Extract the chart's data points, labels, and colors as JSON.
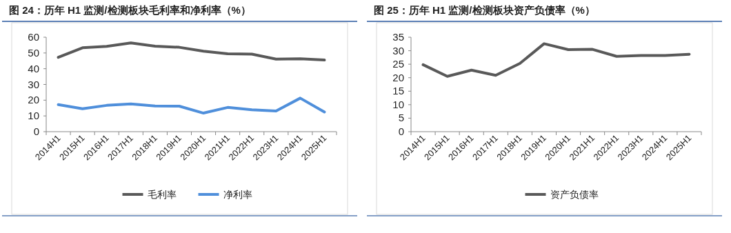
{
  "chart_data": [
    {
      "type": "line",
      "title": "图 24：历年 H1 监测/检测板块毛利率和净利率（%）",
      "categories": [
        "2014H1",
        "2015H1",
        "2016H1",
        "2017H1",
        "2018H1",
        "2019H1",
        "2020H1",
        "2021H1",
        "2022H1",
        "2023H1",
        "2024H1",
        "2025H1"
      ],
      "series": [
        {
          "name": "毛利率",
          "color": "#595959",
          "values": [
            47.2,
            53.3,
            54.2,
            56.4,
            54.3,
            53.6,
            51.1,
            49.5,
            49.3,
            46.1,
            46.3,
            45.5
          ]
        },
        {
          "name": "净利率",
          "color": "#4f8fdb",
          "values": [
            17.2,
            14.6,
            16.7,
            17.6,
            16.3,
            16.2,
            11.8,
            15.4,
            13.9,
            13.1,
            21.3,
            12.5
          ]
        }
      ],
      "ylim": [
        0,
        60
      ],
      "yticks": [
        0,
        10,
        20,
        30,
        40,
        50,
        60
      ],
      "legend": "bottom"
    },
    {
      "type": "line",
      "title": "图 25：历年 H1 监测/检测板块资产负债率（%）",
      "categories": [
        "2014H1",
        "2015H1",
        "2016H1",
        "2017H1",
        "2018H1",
        "2019H1",
        "2020H1",
        "2021H1",
        "2022H1",
        "2023H1",
        "2024H1",
        "2025H1"
      ],
      "series": [
        {
          "name": "资产负债率",
          "color": "#595959",
          "values": [
            24.8,
            20.5,
            22.8,
            20.9,
            25.3,
            32.6,
            30.4,
            30.5,
            27.9,
            28.2,
            28.2,
            28.7
          ]
        }
      ],
      "ylim": [
        0,
        35
      ],
      "yticks": [
        0,
        5,
        10,
        15,
        20,
        25,
        30,
        35
      ],
      "legend": "bottom"
    }
  ]
}
